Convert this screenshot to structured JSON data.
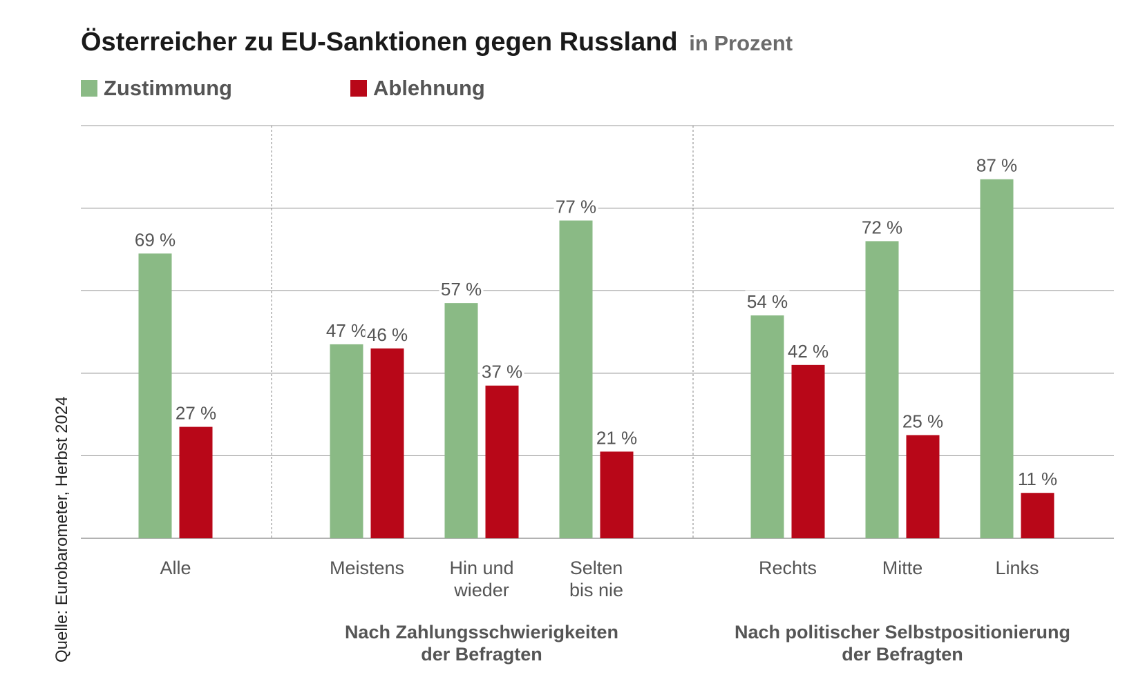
{
  "title": "Österreicher zu EU-Sanktionen gegen Russland",
  "title_unit": "in Prozent",
  "source": "Quelle: Eurobarometer, Herbst 2024",
  "colors": {
    "zustimmung": "#8aba85",
    "ablehnung": "#b80718",
    "grid": "#999999",
    "text": "#555555"
  },
  "chart_data": {
    "type": "bar",
    "title": "Österreicher zu EU-Sanktionen gegen Russland",
    "ylabel": "in Prozent",
    "ylim": [
      0,
      100
    ],
    "grid": true,
    "legend_placement": "top-left",
    "categories": [
      [
        "Alle"
      ],
      [
        "Meistens"
      ],
      [
        "Hin und",
        "wieder"
      ],
      [
        "Selten",
        "bis nie"
      ],
      [
        "Rechts"
      ],
      [
        "Mitte"
      ],
      [
        "Links"
      ]
    ],
    "groups": [
      {
        "label": [
          "Nach Zahlungsschwierigkeiten",
          "der Befragten"
        ],
        "from": 1,
        "to": 3
      },
      {
        "label": [
          "Nach politischer Selbstpositionierung",
          "der Befragten"
        ],
        "from": 4,
        "to": 6
      }
    ],
    "series": [
      {
        "name": "Zustimmung",
        "values": [
          69,
          47,
          57,
          77,
          54,
          72,
          87
        ],
        "labels": [
          "69 %",
          "47 %",
          "57 %",
          "77 %",
          "54 %",
          "72 %",
          "87 %"
        ]
      },
      {
        "name": "Ablehnung",
        "values": [
          27,
          46,
          37,
          21,
          42,
          25,
          11
        ],
        "labels": [
          "27 %",
          "46 %",
          "37 %",
          "21 %",
          "42 %",
          "25 %",
          "11 %"
        ]
      }
    ]
  }
}
